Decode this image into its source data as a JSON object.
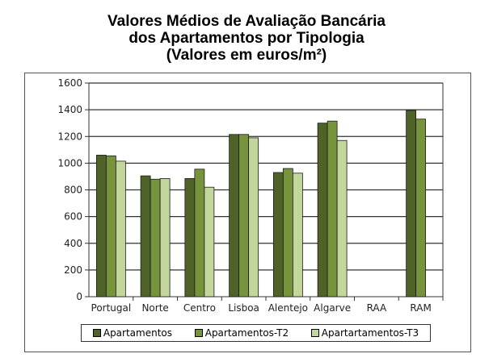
{
  "chart_data": {
    "type": "bar",
    "title": [
      "Valores Médios de Avaliação Bancária",
      "dos Apartamentos por Tipologia",
      "(Valores em euros/m²)"
    ],
    "xlabel": "",
    "ylabel": "",
    "ylim": [
      0,
      1600
    ],
    "yticks": [
      0,
      200,
      400,
      600,
      800,
      1000,
      1200,
      1400,
      1600
    ],
    "grid": true,
    "legend": "bottom",
    "categories": [
      "Portugal",
      "Norte",
      "Centro",
      "Lisboa",
      "Alentejo",
      "Algarve",
      "RAA",
      "RAM"
    ],
    "series": [
      {
        "name": "Apartamentos",
        "color": "#4f6228",
        "values": [
          1060,
          905,
          885,
          1215,
          930,
          1300,
          null,
          1395
        ]
      },
      {
        "name": "Apartamentos-T2",
        "color": "#77933c",
        "values": [
          1055,
          880,
          955,
          1215,
          960,
          1315,
          null,
          1330
        ]
      },
      {
        "name": "Apartartamentos-T3",
        "color": "#c3d69b",
        "values": [
          1015,
          885,
          820,
          1190,
          925,
          1170,
          null,
          null
        ]
      }
    ]
  }
}
